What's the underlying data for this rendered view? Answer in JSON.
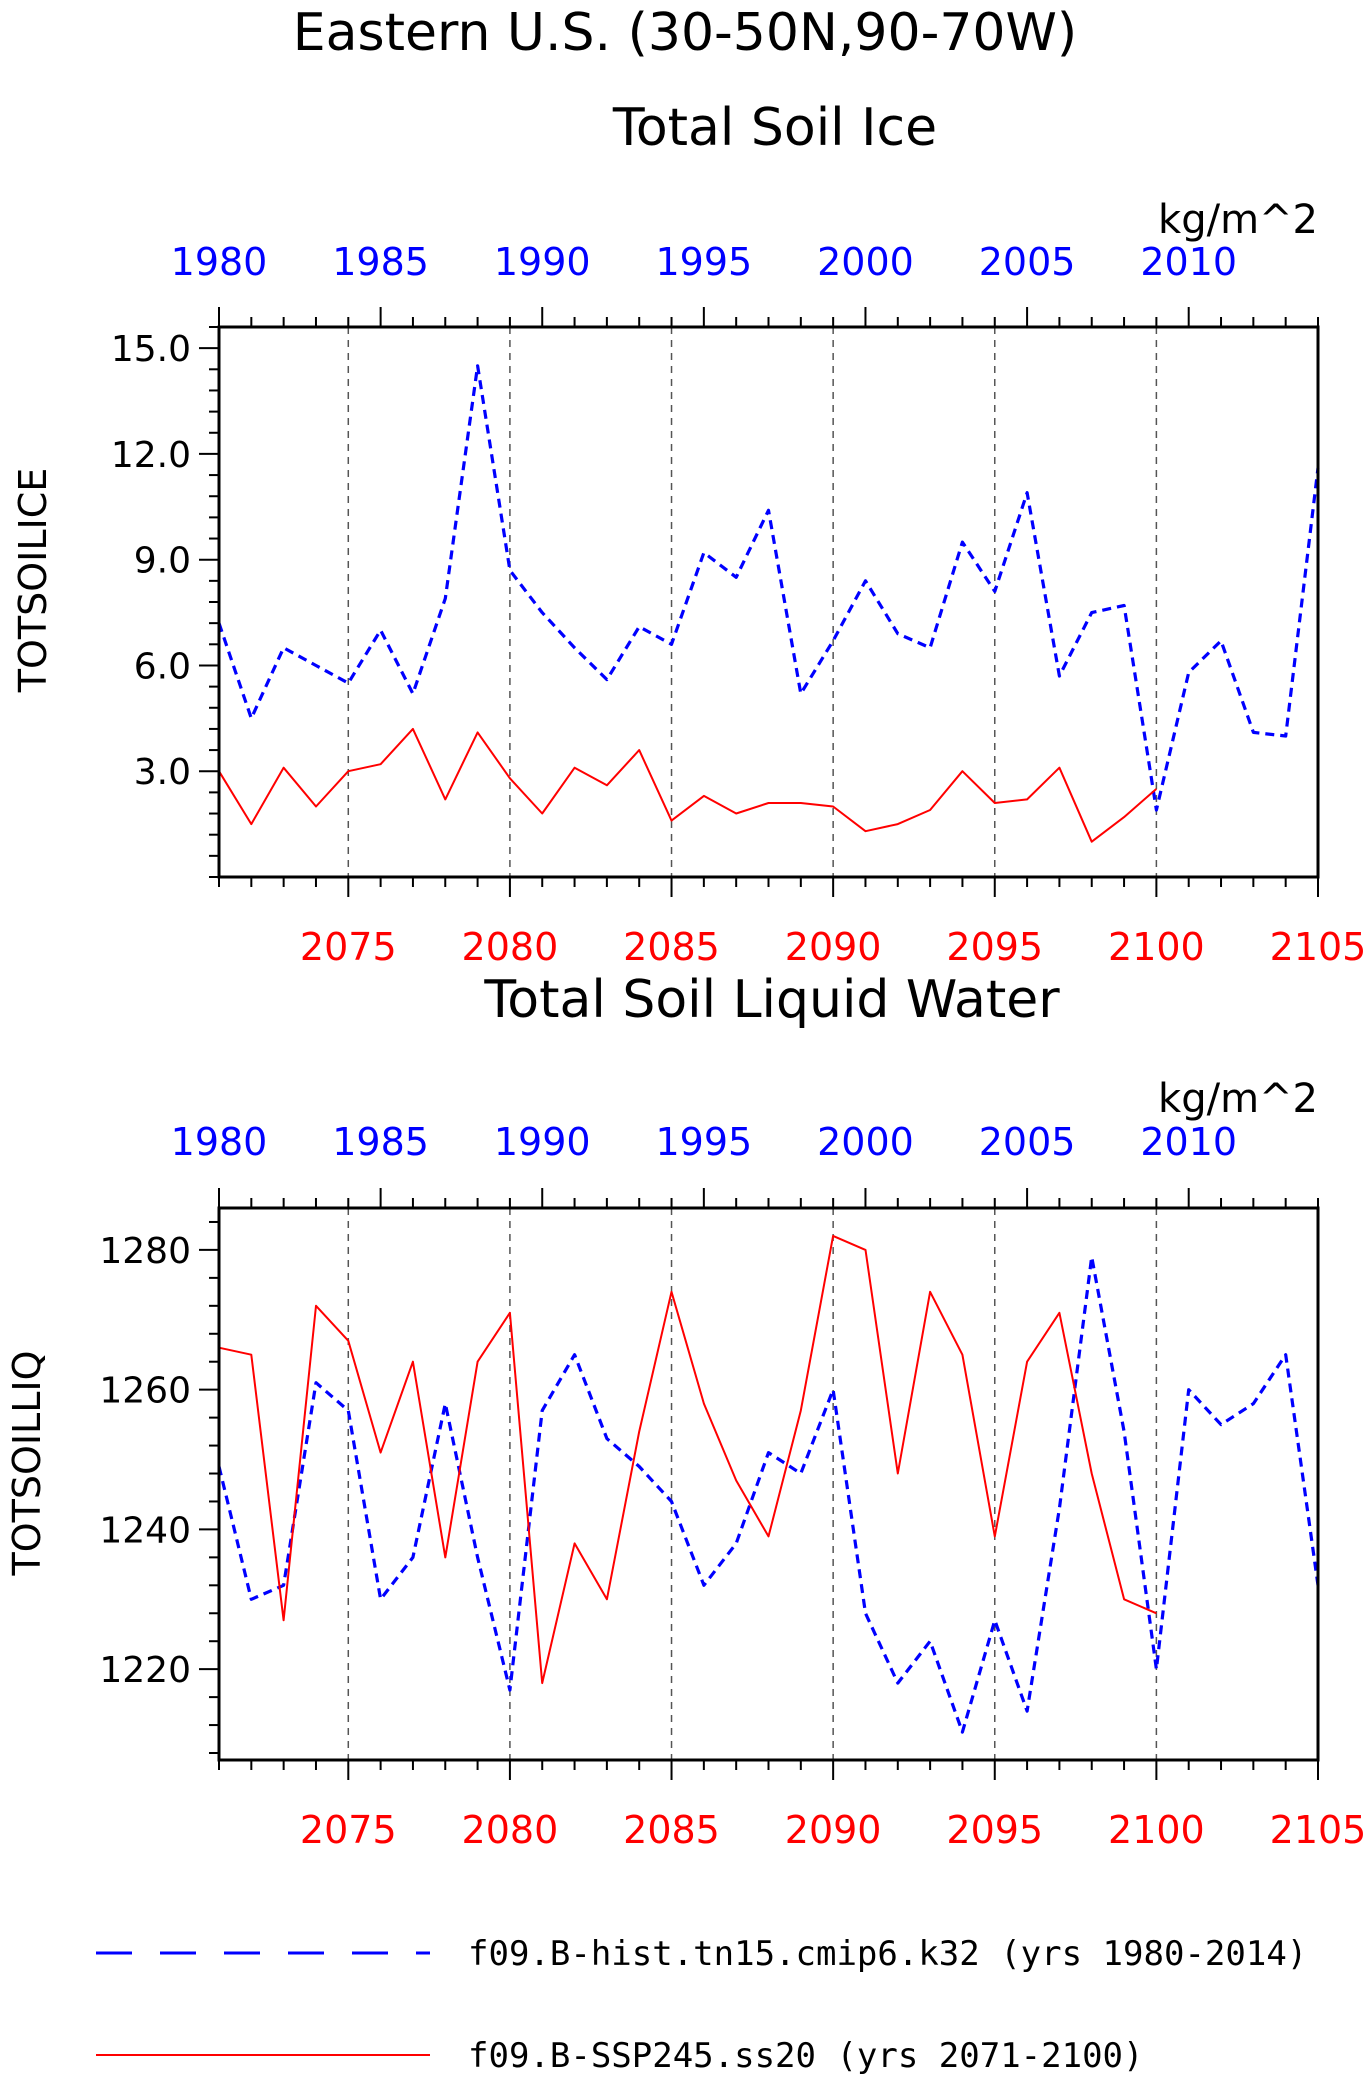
{
  "figure": {
    "title_line1": "Eastern U.S. (30-50N,90-70W)",
    "legend": [
      {
        "label": "f09.B-hist.tn15.cmip6.k32 (yrs 1980-2014)",
        "color": "#0000ff",
        "style": "dashed"
      },
      {
        "label": "f09.B-SSP245.ss20 (yrs 2071-2100)",
        "color": "#ff0000",
        "style": "solid"
      }
    ],
    "colors": {
      "hist": "#0000ff",
      "ssp": "#ff0000",
      "axis": "#000000"
    }
  },
  "chart_data": [
    {
      "type": "line",
      "title": "Total Soil Ice",
      "ylabel": "TOTSOILICE",
      "units": "kg/m^2",
      "ylim": [
        0,
        15.6
      ],
      "yticks": [
        "15.0",
        "12.0",
        "9.0",
        "6.0",
        "3.0"
      ],
      "yticks_values": [
        15.0,
        12.0,
        9.0,
        6.0,
        3.0
      ],
      "top_xaxis": {
        "label_values": [
          "1980",
          "1985",
          "1990",
          "1995",
          "2000",
          "2005",
          "2010"
        ],
        "range": [
          1980,
          2014
        ]
      },
      "bottom_xaxis": {
        "label_values": [
          "2075",
          "2080",
          "2085",
          "2090",
          "2095",
          "2100",
          "2105"
        ],
        "range": [
          2071,
          2105
        ]
      },
      "series": [
        {
          "name": "f09.B-hist.tn15.cmip6.k32 (yrs 1980-2014)",
          "years": [
            1980,
            1981,
            1982,
            1983,
            1984,
            1985,
            1986,
            1987,
            1988,
            1989,
            1990,
            1991,
            1992,
            1993,
            1994,
            1995,
            1996,
            1997,
            1998,
            1999,
            2000,
            2001,
            2002,
            2003,
            2004,
            2005,
            2006,
            2007,
            2008,
            2009,
            2010,
            2011,
            2012,
            2013,
            2014
          ],
          "values": [
            7.2,
            4.5,
            6.5,
            6.0,
            5.5,
            7.0,
            5.2,
            7.9,
            14.5,
            8.7,
            7.5,
            6.5,
            5.6,
            7.1,
            6.6,
            9.2,
            8.5,
            10.4,
            5.2,
            6.7,
            8.4,
            6.9,
            6.5,
            9.5,
            8.1,
            10.9,
            5.7,
            7.5,
            7.7,
            1.9,
            5.8,
            6.7,
            4.1,
            4.0,
            11.6
          ]
        },
        {
          "name": "f09.B-SSP245.ss20 (yrs 2071-2100)",
          "years": [
            2071,
            2072,
            2073,
            2074,
            2075,
            2076,
            2077,
            2078,
            2079,
            2080,
            2081,
            2082,
            2083,
            2084,
            2085,
            2086,
            2087,
            2088,
            2089,
            2090,
            2091,
            2092,
            2093,
            2094,
            2095,
            2096,
            2097,
            2098,
            2099,
            2100
          ],
          "values": [
            3.0,
            1.5,
            3.1,
            2.0,
            3.0,
            3.2,
            4.2,
            2.2,
            4.1,
            2.8,
            1.8,
            3.1,
            2.6,
            3.6,
            1.6,
            2.3,
            1.8,
            2.1,
            2.1,
            2.0,
            1.3,
            1.5,
            1.9,
            3.0,
            2.1,
            2.2,
            3.1,
            1.0,
            1.7,
            2.5
          ]
        }
      ]
    },
    {
      "type": "line",
      "title": "Total Soil Liquid Water",
      "ylabel": "TOTSOILLIQ",
      "units": "kg/m^2",
      "ylim": [
        1207,
        1286
      ],
      "yticks": [
        "1280",
        "1260",
        "1240",
        "1220"
      ],
      "yticks_values": [
        1280,
        1260,
        1240,
        1220
      ],
      "top_xaxis": {
        "label_values": [
          "1980",
          "1985",
          "1990",
          "1995",
          "2000",
          "2005",
          "2010"
        ],
        "range": [
          1980,
          2014
        ]
      },
      "bottom_xaxis": {
        "label_values": [
          "2075",
          "2080",
          "2085",
          "2090",
          "2095",
          "2100",
          "2105"
        ],
        "range": [
          2071,
          2105
        ]
      },
      "series": [
        {
          "name": "f09.B-hist.tn15.cmip6.k32 (yrs 1980-2014)",
          "years": [
            1980,
            1981,
            1982,
            1983,
            1984,
            1985,
            1986,
            1987,
            1988,
            1989,
            1990,
            1991,
            1992,
            1993,
            1994,
            1995,
            1996,
            1997,
            1998,
            1999,
            2000,
            2001,
            2002,
            2003,
            2004,
            2005,
            2006,
            2007,
            2008,
            2009,
            2010,
            2011,
            2012,
            2013,
            2014
          ],
          "values": [
            1249,
            1230,
            1232,
            1261,
            1257,
            1230,
            1236,
            1258,
            1236,
            1217,
            1257,
            1265,
            1253,
            1249,
            1244,
            1232,
            1238,
            1251,
            1248,
            1260,
            1228,
            1218,
            1224,
            1211,
            1227,
            1214,
            1243,
            1279,
            1254,
            1220,
            1260,
            1255,
            1258,
            1265,
            1232
          ]
        },
        {
          "name": "f09.B-SSP245.ss20 (yrs 2071-2100)",
          "years": [
            2071,
            2072,
            2073,
            2074,
            2075,
            2076,
            2077,
            2078,
            2079,
            2080,
            2081,
            2082,
            2083,
            2084,
            2085,
            2086,
            2087,
            2088,
            2089,
            2090,
            2091,
            2092,
            2093,
            2094,
            2095,
            2096,
            2097,
            2098,
            2099,
            2100
          ],
          "values": [
            1266,
            1265,
            1227,
            1272,
            1267,
            1251,
            1264,
            1236,
            1264,
            1271,
            1218,
            1238,
            1230,
            1254,
            1274,
            1258,
            1247,
            1239,
            1257,
            1282,
            1280,
            1248,
            1274,
            1265,
            1239,
            1264,
            1271,
            1248,
            1230,
            1228
          ]
        }
      ]
    }
  ]
}
